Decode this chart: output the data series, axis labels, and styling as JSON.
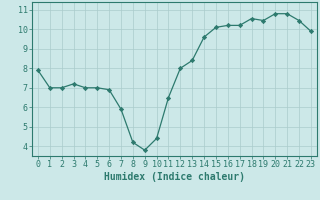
{
  "x": [
    0,
    1,
    2,
    3,
    4,
    5,
    6,
    7,
    8,
    9,
    10,
    11,
    12,
    13,
    14,
    15,
    16,
    17,
    18,
    19,
    20,
    21,
    22,
    23
  ],
  "y": [
    7.9,
    7.0,
    7.0,
    7.2,
    7.0,
    7.0,
    6.9,
    5.9,
    4.2,
    3.8,
    4.4,
    6.5,
    8.0,
    8.4,
    9.6,
    10.1,
    10.2,
    10.2,
    10.55,
    10.45,
    10.8,
    10.8,
    10.45,
    9.9
  ],
  "line_color": "#2d7a6e",
  "marker": "D",
  "marker_size": 2.2,
  "xlabel": "Humidex (Indice chaleur)",
  "xlabel_fontsize": 7,
  "ytick_labels": [
    "4",
    "5",
    "6",
    "7",
    "8",
    "9",
    "10",
    "11"
  ],
  "ytick_values": [
    4,
    5,
    6,
    7,
    8,
    9,
    10,
    11
  ],
  "xlim": [
    -0.5,
    23.5
  ],
  "ylim": [
    3.5,
    11.4
  ],
  "background_color": "#cce8e8",
  "tick_color": "#2d7a6e",
  "tick_fontsize": 6,
  "grid_color": "#aacccc"
}
